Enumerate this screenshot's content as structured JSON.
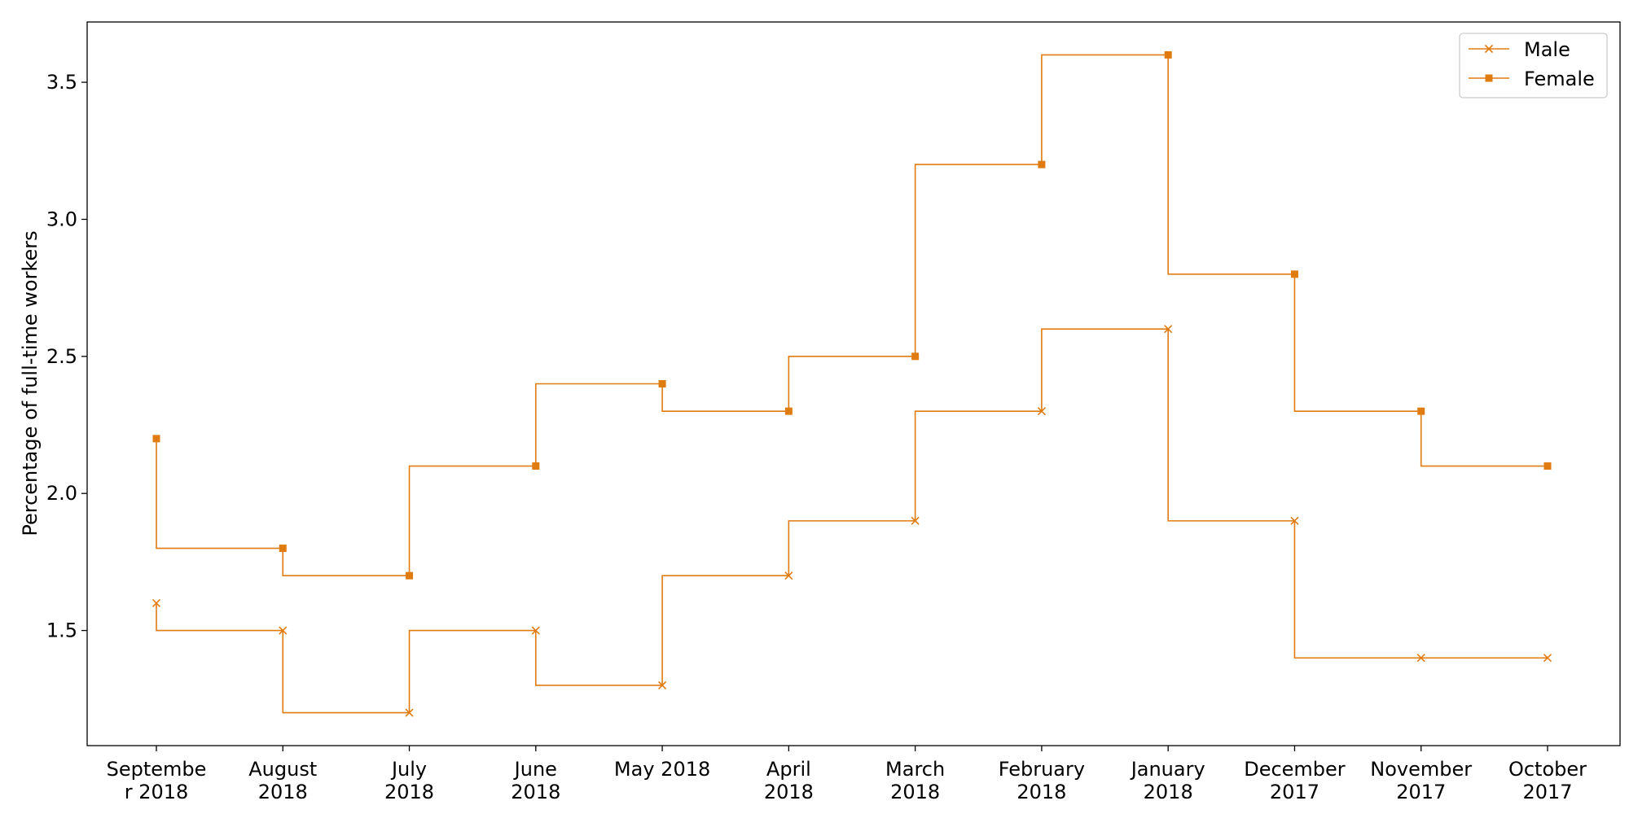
{
  "chart_data": {
    "type": "line",
    "title": "",
    "xlabel": "",
    "ylabel": "Percentage of full-time workers",
    "categories": [
      "September 2018",
      "August 2018",
      "July 2018",
      "June 2018",
      "May 2018",
      "April 2018",
      "March 2018",
      "February 2018",
      "January 2018",
      "December 2017",
      "November 2017",
      "October 2017"
    ],
    "category_tick_lines": [
      [
        "Septembe",
        "r 2018"
      ],
      [
        "August",
        "2018"
      ],
      [
        "July",
        "2018"
      ],
      [
        "June",
        "2018"
      ],
      [
        "May 2018"
      ],
      [
        "April",
        "2018"
      ],
      [
        "March",
        "2018"
      ],
      [
        "February",
        "2018"
      ],
      [
        "January",
        "2018"
      ],
      [
        "December",
        "2017"
      ],
      [
        "November",
        "2017"
      ],
      [
        "October",
        "2017"
      ]
    ],
    "series": [
      {
        "name": "Male",
        "marker": "x",
        "values": [
          1.6,
          1.5,
          1.2,
          1.5,
          1.3,
          1.7,
          1.9,
          2.3,
          2.6,
          1.9,
          1.4,
          1.4
        ]
      },
      {
        "name": "Female",
        "marker": "square",
        "values": [
          2.2,
          1.8,
          1.7,
          2.1,
          2.4,
          2.3,
          2.5,
          3.2,
          3.6,
          2.8,
          2.3,
          2.1
        ]
      }
    ],
    "step": "pre",
    "ylim": [
      1.08,
      3.72
    ],
    "yticks": [
      1.5,
      2.0,
      2.5,
      3.0,
      3.5
    ],
    "ytick_labels": [
      "1.5",
      "2.0",
      "2.5",
      "3.0",
      "3.5"
    ],
    "line_color": "#e07b10",
    "grid": false,
    "legend_position": "top-right"
  }
}
